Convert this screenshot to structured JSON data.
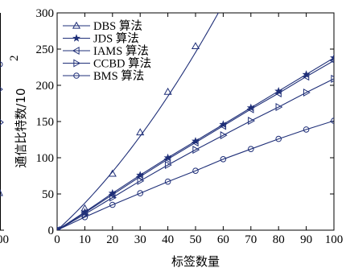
{
  "chart_data": {
    "type": "line",
    "xlabel": "标签数量",
    "ylabel_main": "通信比特数/10",
    "ylabel_exponent": "2",
    "xlim": [
      0,
      100
    ],
    "ylim": [
      0,
      300
    ],
    "xticks": [
      0,
      10,
      20,
      30,
      40,
      50,
      60,
      70,
      80,
      90,
      100
    ],
    "yticks": [
      0,
      50,
      100,
      150,
      200,
      250,
      300
    ],
    "legend_position": "top-left",
    "grid": false,
    "series": [
      {
        "name": "DBS 算法",
        "marker": "triangle-up",
        "x": [
          0,
          10,
          20,
          30,
          40,
          50,
          60
        ],
        "y": [
          0,
          30,
          78,
          135,
          191,
          254,
          320
        ],
        "marker_x": [
          0,
          10,
          20,
          30,
          40,
          50
        ]
      },
      {
        "name": "JDS 算法",
        "marker": "star",
        "x": [
          0,
          10,
          20,
          30,
          40,
          50,
          60,
          70,
          80,
          90,
          100
        ],
        "y": [
          0,
          25,
          51,
          76,
          100,
          123,
          146,
          169,
          192,
          215,
          238
        ]
      },
      {
        "name": "IAMS 算法",
        "marker": "triangle-left",
        "x": [
          0,
          10,
          20,
          30,
          40,
          50,
          60,
          70,
          80,
          90,
          100
        ],
        "y": [
          0,
          24,
          49,
          74,
          98,
          121,
          144,
          167,
          189,
          212,
          234
        ]
      },
      {
        "name": "CCBD 算法",
        "marker": "triangle-right",
        "x": [
          0,
          10,
          20,
          30,
          40,
          50,
          60,
          70,
          80,
          90,
          100
        ],
        "y": [
          0,
          22,
          45,
          68,
          90,
          111,
          131,
          151,
          170,
          190,
          209
        ]
      },
      {
        "name": "BMS 算法",
        "marker": "circle",
        "x": [
          0,
          10,
          20,
          30,
          40,
          50,
          60,
          70,
          80,
          90,
          100
        ],
        "y": [
          0,
          18,
          35,
          51,
          67,
          82,
          98,
          112,
          126,
          139,
          151
        ]
      }
    ],
    "left_neighbor_fragment": {
      "tick_label": "00"
    }
  }
}
